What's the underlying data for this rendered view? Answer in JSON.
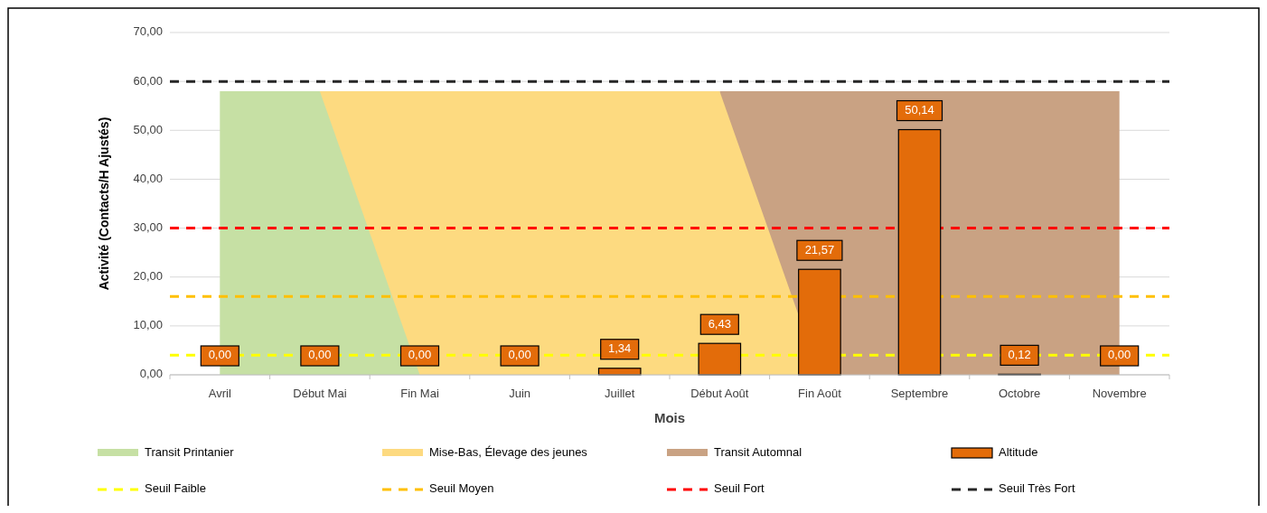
{
  "chart_data": {
    "type": "bar",
    "xlabel": "Mois",
    "ylabel": "Activité (Contacts/H Ajustés)",
    "categories": [
      "Avril",
      "Début Mai",
      "Fin Mai",
      "Juin",
      "Juillet",
      "Début Août",
      "Fin Août",
      "Septembre",
      "Octobre",
      "Novembre"
    ],
    "series": [
      {
        "name": "Transit Printanier",
        "type": "area",
        "color": "#c6e0a4",
        "values": [
          58,
          58,
          0,
          null,
          null,
          null,
          null,
          null,
          null,
          null
        ]
      },
      {
        "name": "Mise-Bas, Élevage des jeunes",
        "type": "area",
        "color": "#fdda80",
        "values": [
          null,
          58,
          58,
          58,
          58,
          58,
          0,
          null,
          null,
          null
        ]
      },
      {
        "name": "Transit Automnal",
        "type": "area",
        "color": "#c9a283",
        "values": [
          null,
          null,
          null,
          null,
          null,
          58,
          58,
          58,
          58,
          58
        ]
      },
      {
        "name": "Altitude",
        "color": "#e36c0a",
        "values": [
          0,
          0,
          0,
          0,
          1.34,
          6.43,
          21.57,
          50.14,
          0.12,
          0
        ],
        "value_labels": [
          "0,00",
          "0,00",
          "0,00",
          "0,00",
          "1,34",
          "6,43",
          "21,57",
          "50,14",
          "0,12",
          "0,00"
        ]
      }
    ],
    "ylim": [
      0,
      70
    ],
    "yticks": [
      {
        "value": 0,
        "label": "0,00"
      },
      {
        "value": 10,
        "label": "10,00"
      },
      {
        "value": 20,
        "label": "20,00"
      },
      {
        "value": 30,
        "label": "30,00"
      },
      {
        "value": 40,
        "label": "40,00"
      },
      {
        "value": 50,
        "label": "50,00"
      },
      {
        "value": 60,
        "label": "60,00"
      },
      {
        "value": 70,
        "label": "70,00"
      }
    ],
    "grid": "y",
    "legend": "bottom",
    "ref_lines": [
      {
        "axis": "y",
        "value": 4,
        "label": "Seuil Faible",
        "color": "#ffff00",
        "line_style": "dashed"
      },
      {
        "axis": "y",
        "value": 16,
        "label": "Seuil Moyen",
        "color": "#ffc000",
        "line_style": "dashed"
      },
      {
        "axis": "y",
        "value": 30,
        "label": "Seuil Fort",
        "color": "#ff0000",
        "line_style": "dashed"
      },
      {
        "axis": "y",
        "value": 60,
        "label": "Seuil Très Fort",
        "color": "#262626",
        "line_style": "dashed"
      }
    ]
  }
}
